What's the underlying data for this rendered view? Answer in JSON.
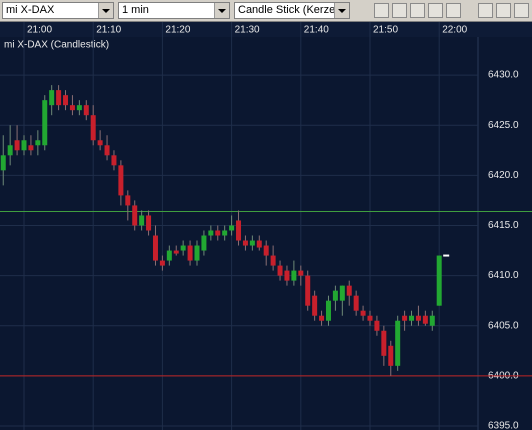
{
  "toolbar": {
    "symbol": "mi X-DAX",
    "interval": "1 min",
    "chart_type": "Candle Stick (Kerze"
  },
  "chart_data": {
    "type": "candlestick",
    "title": "mi X-DAX (Candlestick)",
    "categories": [
      null,
      null,
      null,
      "21:00",
      null,
      null,
      null,
      null,
      null,
      null,
      null,
      null,
      null,
      "21:10",
      null,
      null,
      null,
      null,
      null,
      null,
      null,
      null,
      null,
      "21:20",
      null,
      null,
      null,
      null,
      null,
      null,
      null,
      null,
      null,
      "21:30",
      null,
      null,
      null,
      null,
      null,
      null,
      null,
      null,
      null,
      "21:40",
      null,
      null,
      null,
      null,
      null,
      null,
      null,
      null,
      null,
      "21:50",
      null,
      null,
      null,
      null,
      null,
      null,
      null,
      null,
      null,
      "22:00"
    ],
    "open": [
      6420.5,
      6422,
      6423.5,
      6422.5,
      6423,
      6423,
      6423,
      6427,
      6428.5,
      6428,
      6427,
      6426.5,
      6427,
      6426,
      6423.5,
      6423,
      6422,
      6421,
      6418,
      6417,
      6415,
      6416,
      6414,
      6411.5,
      6411.5,
      6412.5,
      6412.5,
      6413,
      6411.5,
      6412.5,
      6414,
      6414.5,
      6414,
      6414.5,
      6415.5,
      6413.5,
      6413,
      6413.5,
      6413,
      6412,
      6411,
      6410.5,
      6409.5,
      6410.5,
      6410,
      6408,
      6406,
      6405.5,
      6407.5,
      6407.5,
      6409,
      6408,
      6406.5,
      6406,
      6405.5,
      6404.5,
      6403,
      6401,
      6406,
      6405.5,
      6406,
      6406,
      6405,
      6407
    ],
    "high": [
      6424,
      6425,
      6425,
      6424,
      6424,
      6424.5,
      6428,
      6429,
      6429,
      6428.5,
      6428,
      6427.5,
      6427.5,
      6427,
      6424.5,
      6424,
      6422.5,
      6421.5,
      6418.5,
      6417.5,
      6416.5,
      6416.5,
      6415,
      6412,
      6413,
      6413,
      6413.5,
      6413.5,
      6413.5,
      6414.5,
      6415,
      6415,
      6415,
      6416,
      6416.5,
      6414,
      6414,
      6414,
      6413.5,
      6413,
      6411.5,
      6411,
      6411.5,
      6411,
      6410.5,
      6408.5,
      6406.5,
      6408,
      6409,
      6409,
      6409.5,
      6408.5,
      6407,
      6406.5,
      6406,
      6405,
      6403.5,
      6406,
      6406.5,
      6406.5,
      6407,
      6406.5,
      6406.5,
      6412
    ],
    "low": [
      6419,
      6421,
      6422,
      6422,
      6422,
      6422,
      6422.5,
      6426,
      6426.5,
      6426.5,
      6426,
      6426,
      6425.5,
      6423,
      6422.5,
      6421.5,
      6420.5,
      6417,
      6415.5,
      6414.5,
      6414.5,
      6414,
      6411,
      6410.5,
      6411,
      6412,
      6412,
      6411,
      6411,
      6412,
      6413.5,
      6413.5,
      6413.5,
      6414,
      6413,
      6412.5,
      6412.5,
      6412.5,
      6411,
      6410.5,
      6409.5,
      6409,
      6409,
      6409,
      6406.5,
      6405.5,
      6405,
      6405,
      6406.5,
      6406,
      6407,
      6406,
      6405.5,
      6405,
      6404,
      6401,
      6400,
      6400.5,
      6404.5,
      6405,
      6405,
      6405,
      6404.5,
      6407
    ],
    "close": [
      6422,
      6423,
      6422.5,
      6423.5,
      6422.5,
      6423.5,
      6427.5,
      6428.5,
      6427,
      6427,
      6426.5,
      6427,
      6426,
      6423.5,
      6423,
      6422,
      6421,
      6418,
      6417,
      6415,
      6416,
      6414.5,
      6411.5,
      6411,
      6412.5,
      6412.2,
      6413,
      6411.5,
      6413,
      6414,
      6414.5,
      6414,
      6414.5,
      6415,
      6413.5,
      6413,
      6413.5,
      6412.8,
      6412,
      6411,
      6410,
      6409.5,
      6410.5,
      6410,
      6407,
      6406,
      6405.5,
      6407.5,
      6408.5,
      6409,
      6408,
      6406.5,
      6406,
      6405.5,
      6404.5,
      6402,
      6401,
      6405.5,
      6405.5,
      6406,
      6405.5,
      6405.2,
      6406,
      6412
    ],
    "up_color": "#22a832",
    "down_color": "#c8202c",
    "ylim": [
      6394.6,
      6433.8
    ],
    "yticks": [
      {
        "value": 6395,
        "label": "6395.0"
      },
      {
        "value": 6400,
        "label": "6400.0"
      },
      {
        "value": 6405,
        "label": "6405.0"
      },
      {
        "value": 6410,
        "label": "6410.0"
      },
      {
        "value": 6415,
        "label": "6415.0"
      },
      {
        "value": 6420,
        "label": "6420.0"
      },
      {
        "value": 6425,
        "label": "6425.0"
      },
      {
        "value": 6430,
        "label": "6430.0"
      }
    ],
    "grid": true,
    "lines": [
      {
        "value": 6416.4,
        "color": "#3f9e3f"
      },
      {
        "value": 6400,
        "color": "#c02424"
      }
    ],
    "last_price": 6412
  }
}
